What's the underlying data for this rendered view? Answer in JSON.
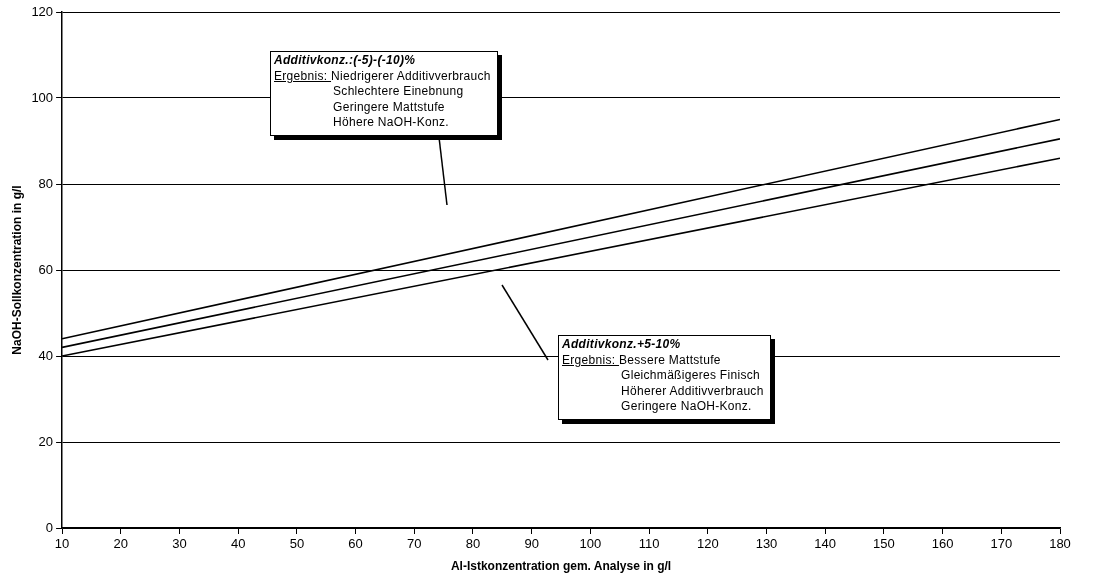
{
  "chart_data": {
    "type": "line",
    "xlabel": "Al-Istkonzentration gem. Analyse in g/l",
    "ylabel": "NaOH-Sollkonzentration in g/l",
    "xlim": [
      10,
      180
    ],
    "xticks": [
      10,
      20,
      30,
      40,
      50,
      60,
      70,
      80,
      90,
      100,
      110,
      120,
      130,
      140,
      150,
      160,
      170,
      180
    ],
    "ylim": [
      0,
      120
    ],
    "yticks": [
      0,
      20,
      40,
      60,
      80,
      100,
      120
    ],
    "grid": "y",
    "legend": false,
    "marker": "none",
    "line_style": "solid",
    "x": [
      10,
      180
    ],
    "series": [
      {
        "color": "#000000",
        "values": [
          44,
          95
        ]
      },
      {
        "color": "#000000",
        "values": [
          42,
          90.5
        ]
      },
      {
        "color": "#000000",
        "values": [
          40,
          86
        ]
      }
    ],
    "annotations": [
      "Additivkonz.:(-5)-(-10)%\nErgebnis: Niedrigerer Additivverbrauch\nSchlechtere Einebnung\nGeringere Mattstufe\nHöhere NaOH-Konz.",
      "Additivkonz.+5-10%\nErgebnis: Bessere Mattstufe\nGleichmäßigeres Finisch\nHöherer Additivverbrauch\nGeringere NaOH-Konz."
    ]
  }
}
